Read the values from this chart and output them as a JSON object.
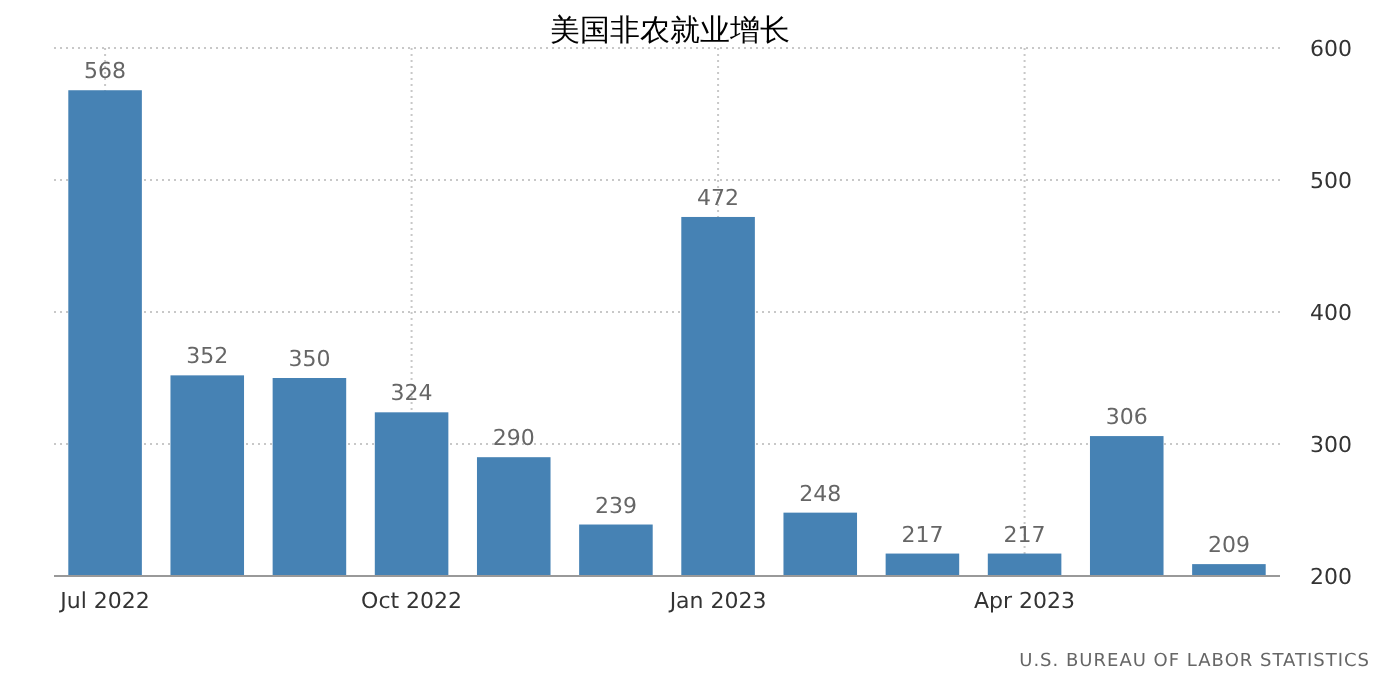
{
  "chart_data": {
    "type": "bar",
    "title": "美国非农就业增长",
    "categories": [
      "Jul 2022",
      null,
      null,
      "Oct 2022",
      null,
      null,
      "Jan 2023",
      null,
      null,
      "Apr 2023",
      null,
      null
    ],
    "values": [
      568,
      352,
      350,
      324,
      290,
      239,
      472,
      248,
      217,
      217,
      306,
      209
    ],
    "color": "#4682b4",
    "ylim": [
      200,
      600
    ],
    "yticks": [
      200,
      300,
      400,
      500,
      600
    ],
    "grid": true,
    "data_labels": true,
    "annotations": [
      "U.S. BUREAU OF LABOR STATISTICS"
    ]
  }
}
